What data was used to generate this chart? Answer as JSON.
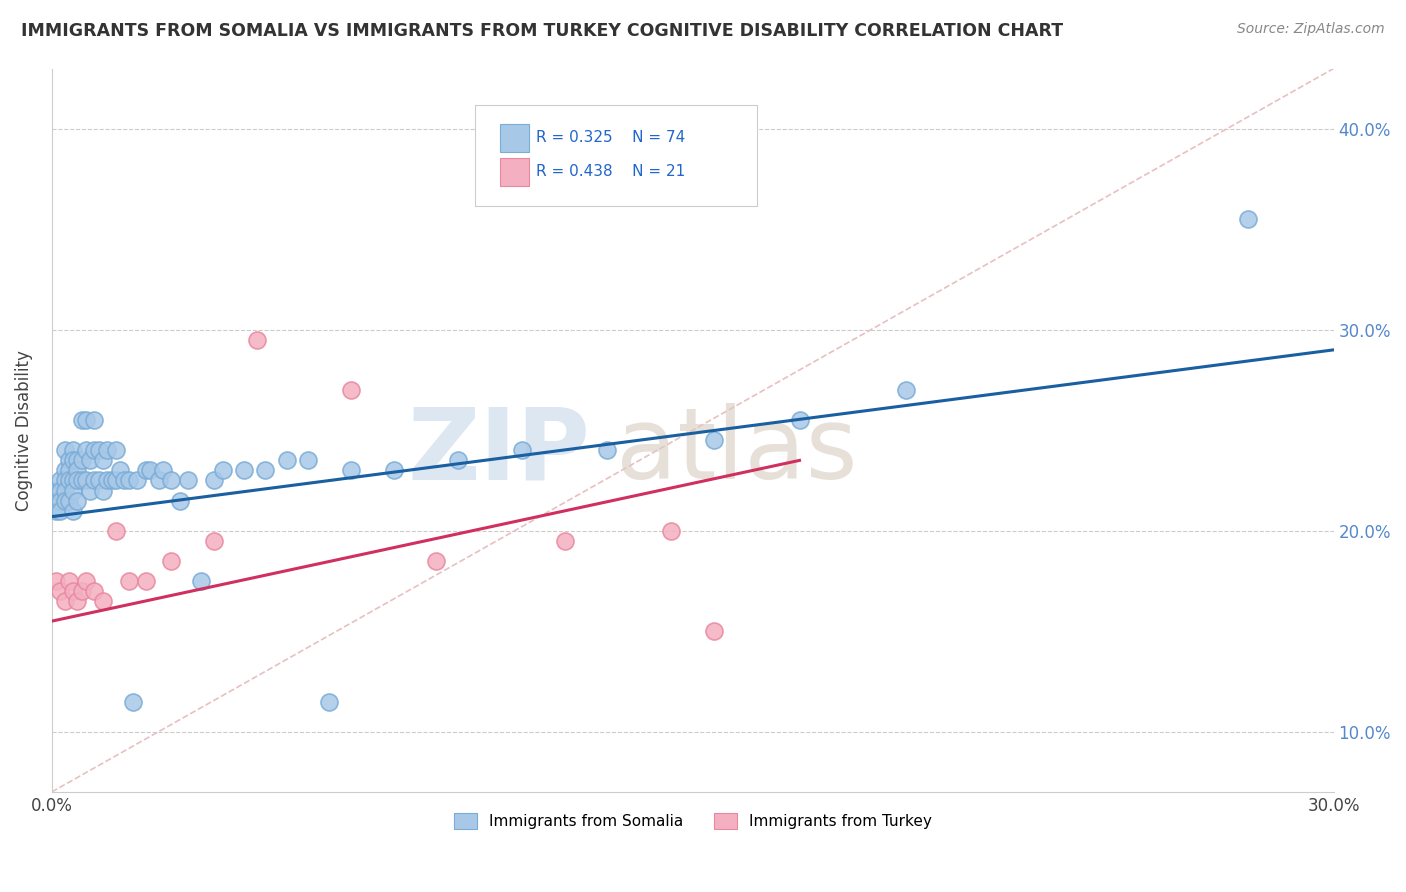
{
  "title": "IMMIGRANTS FROM SOMALIA VS IMMIGRANTS FROM TURKEY COGNITIVE DISABILITY CORRELATION CHART",
  "source": "Source: ZipAtlas.com",
  "ylabel": "Cognitive Disability",
  "xlim": [
    0.0,
    0.3
  ],
  "ylim": [
    0.07,
    0.43
  ],
  "xticks": [
    0.0,
    0.05,
    0.1,
    0.15,
    0.2,
    0.25,
    0.3
  ],
  "xtick_labels": [
    "0.0%",
    "",
    "",
    "",
    "",
    "",
    "30.0%"
  ],
  "yticks": [
    0.1,
    0.2,
    0.3,
    0.4
  ],
  "ytick_labels": [
    "10.0%",
    "20.0%",
    "30.0%",
    "40.0%"
  ],
  "somalia_color": "#a8c8e8",
  "turkey_color": "#f4b0c0",
  "somalia_edge_color": "#7aacd6",
  "turkey_edge_color": "#e888a0",
  "somalia_line_color": "#1a5fa0",
  "turkey_line_color": "#d03060",
  "diag_line_color": "#e8c0c0",
  "legend_R_somalia": "R = 0.325",
  "legend_N_somalia": "N = 74",
  "legend_R_turkey": "R = 0.438",
  "legend_N_turkey": "N = 21",
  "somalia_x": [
    0.001,
    0.001,
    0.001,
    0.002,
    0.002,
    0.002,
    0.002,
    0.003,
    0.003,
    0.003,
    0.003,
    0.003,
    0.004,
    0.004,
    0.004,
    0.004,
    0.005,
    0.005,
    0.005,
    0.005,
    0.005,
    0.006,
    0.006,
    0.006,
    0.006,
    0.007,
    0.007,
    0.007,
    0.008,
    0.008,
    0.008,
    0.009,
    0.009,
    0.01,
    0.01,
    0.01,
    0.011,
    0.011,
    0.012,
    0.012,
    0.013,
    0.013,
    0.014,
    0.015,
    0.015,
    0.016,
    0.017,
    0.018,
    0.019,
    0.02,
    0.022,
    0.023,
    0.025,
    0.026,
    0.028,
    0.03,
    0.032,
    0.035,
    0.038,
    0.04,
    0.045,
    0.05,
    0.055,
    0.06,
    0.065,
    0.07,
    0.08,
    0.095,
    0.11,
    0.13,
    0.155,
    0.175,
    0.2,
    0.28
  ],
  "somalia_y": [
    0.22,
    0.215,
    0.21,
    0.225,
    0.22,
    0.215,
    0.21,
    0.24,
    0.23,
    0.225,
    0.22,
    0.215,
    0.235,
    0.23,
    0.225,
    0.215,
    0.24,
    0.235,
    0.225,
    0.22,
    0.21,
    0.235,
    0.23,
    0.225,
    0.215,
    0.255,
    0.235,
    0.225,
    0.255,
    0.24,
    0.225,
    0.235,
    0.22,
    0.255,
    0.24,
    0.225,
    0.24,
    0.225,
    0.235,
    0.22,
    0.24,
    0.225,
    0.225,
    0.24,
    0.225,
    0.23,
    0.225,
    0.225,
    0.115,
    0.225,
    0.23,
    0.23,
    0.225,
    0.23,
    0.225,
    0.215,
    0.225,
    0.175,
    0.225,
    0.23,
    0.23,
    0.23,
    0.235,
    0.235,
    0.115,
    0.23,
    0.23,
    0.235,
    0.24,
    0.24,
    0.245,
    0.255,
    0.27,
    0.355
  ],
  "turkey_x": [
    0.001,
    0.002,
    0.003,
    0.004,
    0.005,
    0.006,
    0.007,
    0.008,
    0.01,
    0.012,
    0.015,
    0.018,
    0.022,
    0.028,
    0.038,
    0.048,
    0.07,
    0.09,
    0.12,
    0.145,
    0.155
  ],
  "turkey_y": [
    0.175,
    0.17,
    0.165,
    0.175,
    0.17,
    0.165,
    0.17,
    0.175,
    0.17,
    0.165,
    0.2,
    0.175,
    0.175,
    0.185,
    0.195,
    0.295,
    0.27,
    0.185,
    0.195,
    0.2,
    0.15
  ],
  "somalia_line_x": [
    0.0,
    0.3
  ],
  "somalia_line_y": [
    0.207,
    0.29
  ],
  "turkey_line_x": [
    0.0,
    0.175
  ],
  "turkey_line_y": [
    0.155,
    0.235
  ],
  "diag_line_x": [
    0.0,
    0.3
  ],
  "diag_line_y": [
    0.07,
    0.43
  ]
}
